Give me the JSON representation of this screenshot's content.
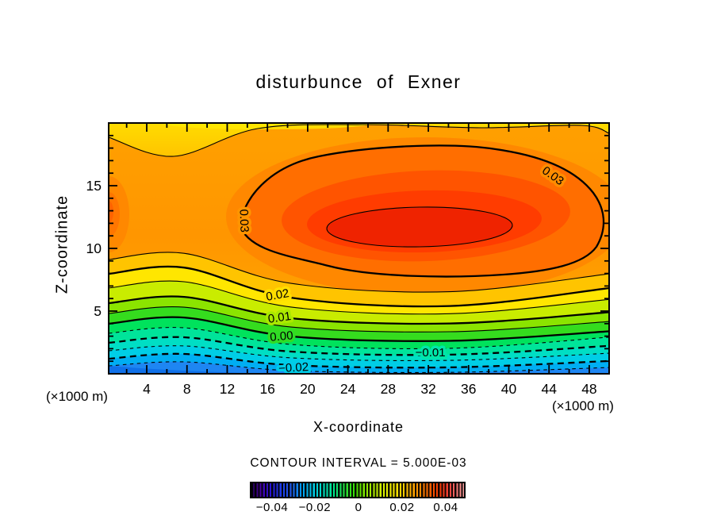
{
  "title": "disturbunce of Exner",
  "axis": {
    "x_label": "X-coordinate",
    "x_unit": "(×1000 m)",
    "y_label": "Z-coordinate",
    "y_unit": "(×1000 m)"
  },
  "footer": {
    "contour_note": "CONTOUR INTERVAL = 5.000E-03"
  },
  "chart_data": {
    "type": "heatmap",
    "subtype": "filled-contour",
    "title": "disturbunce of Exner",
    "xlabel": "X-coordinate",
    "ylabel": "Z-coordinate",
    "x_unit": "(×1000 m)",
    "y_unit": "(×1000 m)",
    "xlim": [
      0,
      50
    ],
    "ylim": [
      0,
      20
    ],
    "x_tick_labels": [
      4,
      8,
      12,
      16,
      20,
      24,
      28,
      32,
      36,
      40,
      44,
      48
    ],
    "x_tick_minor_step": 2,
    "y_tick_labels": [
      5,
      10,
      15
    ],
    "y_tick_minor_step": 1,
    "contour_interval": 0.005,
    "contour_interval_text": "CONTOUR INTERVAL = 5.000E-03",
    "contour_labels": [
      {
        "text": "0.03",
        "x": 44.4,
        "z": 15.8,
        "rot": 35,
        "halo": "#FF8C00"
      },
      {
        "text": "0.03",
        "x": 13.7,
        "z": 12.2,
        "rot": 88,
        "halo": "#FF9400"
      },
      {
        "text": "0.02",
        "x": 17.0,
        "z": 6.3,
        "rot": -10,
        "halo": "#FFDE00"
      },
      {
        "text": "0.01",
        "x": 17.2,
        "z": 4.5,
        "rot": -8,
        "halo": "#AAE800"
      },
      {
        "text": "0.00",
        "x": 17.4,
        "z": 3.0,
        "rot": -5,
        "halo": "#30DC25"
      },
      {
        "text": "−0.01",
        "x": 32.2,
        "z": 1.7,
        "rot": 0,
        "halo": "#00E6A8"
      },
      {
        "text": "−0.02",
        "x": 18.6,
        "z": 0.5,
        "rot": -3,
        "halo": "#00CCE8"
      }
    ],
    "bands": [
      {
        "level": 0.025,
        "style": "thin",
        "left_z": 9.11,
        "sag_z": 1.9,
        "bump_z": 0.5,
        "color_below": "#FFC400"
      },
      {
        "level": 0.02,
        "style": "thick",
        "left_z": 7.97,
        "sag_z": 1.9,
        "bump_z": 0.5,
        "color_below": "#FFE600"
      },
      {
        "level": 0.015,
        "style": "thin",
        "left_z": 6.84,
        "sag_z": 1.52,
        "bump_z": 0.5,
        "color_below": "#C9EC00"
      },
      {
        "level": 0.01,
        "style": "thick",
        "left_z": 5.63,
        "sag_z": 1.2,
        "bump_z": 0.5,
        "color_below": "#8BE400"
      },
      {
        "level": 0.005,
        "style": "thin",
        "left_z": 4.81,
        "sag_z": 1.08,
        "bump_z": 0.5,
        "color_below": "#35DC1E"
      },
      {
        "level": 0.0,
        "style": "thick",
        "left_z": 3.99,
        "sag_z": 1.01,
        "bump_z": 0.5,
        "color_below": "#00E25C"
      },
      {
        "level": -0.005,
        "style": "thin-dash",
        "left_z": 3.23,
        "sag_z": 0.89,
        "bump_z": 0.44,
        "color_below": "#00E49A"
      },
      {
        "level": -0.01,
        "style": "thick-dash",
        "left_z": 2.47,
        "sag_z": 0.7,
        "bump_z": 0.44,
        "color_below": "#00DEC4"
      },
      {
        "level": -0.015,
        "style": "thin-dash",
        "left_z": 1.84,
        "sag_z": 0.57,
        "bump_z": 0.38,
        "color_below": "#00CEE6"
      },
      {
        "level": -0.02,
        "style": "thick-dash",
        "left_z": 1.2,
        "sag_z": 0.51,
        "bump_z": 0.38,
        "color_below": "#00AEF2"
      },
      {
        "level": -0.025,
        "style": "thin-dash",
        "left_z": 0.63,
        "sag_z": 0.38,
        "bump_z": 0.32,
        "color_below": "#1E86F2"
      }
    ],
    "upper_region": {
      "base_top": "#FFA000",
      "base_mid": "#FF9600",
      "base_bottom": "#FFAC00",
      "outer_glow": "#FF8800",
      "max_blob": {
        "level_thick": 0.03,
        "level_inner": 0.035,
        "color": "#FF6E00",
        "mid_color": "#FF5400",
        "core_color": "#FF3C00",
        "inner_color": "#EF2300"
      },
      "top_strip": {
        "color_top": "#FFDC00",
        "color_bottom": "#FFC400"
      },
      "left_spot_colors": [
        "#FF8800",
        "#FF7600",
        "#FF6200"
      ],
      "corner_deep_blue": "#1070E8"
    },
    "colorbar": {
      "range": [
        -0.05,
        0.05
      ],
      "labels": [
        {
          "text": "−0.04",
          "pos": 10.3
        },
        {
          "text": "−0.02",
          "pos": 30.1
        },
        {
          "text": "0",
          "pos": 50.4
        },
        {
          "text": "0.02",
          "pos": 70.6
        },
        {
          "text": "0.04",
          "pos": 90.8
        }
      ],
      "stops": [
        [
          0,
          "#1A0040"
        ],
        [
          4,
          "#4800A0"
        ],
        [
          9,
          "#2814D2"
        ],
        [
          14,
          "#1E3CE8"
        ],
        [
          19,
          "#2060F0"
        ],
        [
          24,
          "#00A0F0"
        ],
        [
          29,
          "#00C8E4"
        ],
        [
          34,
          "#00E0C0"
        ],
        [
          39,
          "#00E688"
        ],
        [
          44,
          "#28E23C"
        ],
        [
          49,
          "#3CDC00"
        ],
        [
          54,
          "#8CE800"
        ],
        [
          60,
          "#C8F000"
        ],
        [
          66,
          "#F8F000"
        ],
        [
          71,
          "#FFD000"
        ],
        [
          77,
          "#FF9E00"
        ],
        [
          83,
          "#FF6A00"
        ],
        [
          88,
          "#F43A00"
        ],
        [
          93,
          "#F04038"
        ],
        [
          97,
          "#F47C78"
        ],
        [
          100,
          "#F8A0A0"
        ]
      ]
    }
  }
}
